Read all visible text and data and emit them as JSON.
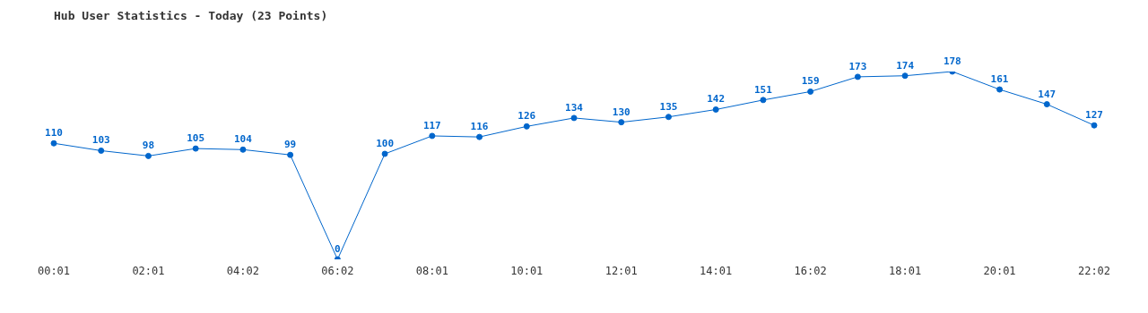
{
  "chart_data": {
    "type": "line",
    "title": "Hub User Statistics - Today (23 Points)",
    "categories": [
      "00:01",
      null,
      "02:01",
      null,
      "04:02",
      null,
      "06:02",
      null,
      "08:01",
      null,
      "10:01",
      null,
      "12:01",
      null,
      "14:01",
      null,
      "16:02",
      null,
      "18:01",
      null,
      "20:01",
      null,
      "22:02"
    ],
    "series": [
      {
        "color": "#0066cc",
        "values": [
          110,
          103,
          98,
          105,
          104,
          99,
          0,
          100,
          117,
          116,
          126,
          134,
          130,
          135,
          142,
          151,
          159,
          173,
          174,
          178,
          161,
          147,
          127
        ]
      }
    ],
    "data_labels": true,
    "marker": "circle",
    "line_style": "solid"
  }
}
